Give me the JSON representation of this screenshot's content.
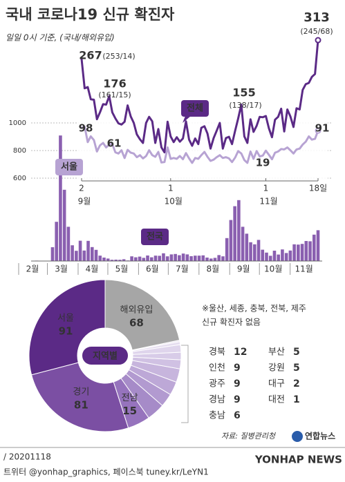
{
  "chart_data": [
    {
      "type": "line",
      "title": "국내 코로나19 신규 확진자",
      "subtitle": "일일 0시 기준, (국내/해외유입)",
      "x": [
        0,
        1,
        2,
        3,
        4,
        5,
        6,
        7,
        8,
        9,
        10,
        11,
        12,
        13,
        14,
        15,
        16,
        17,
        18,
        19,
        20,
        21,
        22,
        23,
        24,
        25,
        26,
        27,
        28,
        29,
        30,
        31,
        32,
        33,
        34,
        35,
        36,
        37,
        38,
        39,
        40,
        41,
        42,
        43,
        44,
        45,
        46,
        47,
        48,
        49,
        50,
        51,
        52,
        53,
        54,
        55,
        56,
        57,
        58,
        59,
        60,
        61,
        62,
        63,
        64,
        65,
        66,
        67,
        68,
        69,
        70,
        71,
        72,
        73,
        74,
        75,
        76,
        77
      ],
      "xlim": [
        0,
        77
      ],
      "xticks": [
        {
          "value": 0,
          "label": "2"
        },
        {
          "value": 29,
          "label": "1"
        },
        {
          "value": 60,
          "label": "1"
        },
        {
          "value": 77,
          "label": "18일"
        }
      ],
      "month_labels": [
        "9월",
        "10월",
        "11월"
      ],
      "ylim": [
        0,
        320
      ],
      "annotations": [
        "(253/14)",
        "(161/15)",
        "(138/17)",
        "(245/68)"
      ],
      "series": [
        {
          "name": "전체",
          "color": "#5b2a86",
          "values": [
            267,
            195,
            198,
            168,
            167,
            119,
            136,
            156,
            155,
            176,
            136,
            121,
            109,
            106,
            113,
            153,
            126,
            110,
            82,
            70,
            61,
            110,
            125,
            114,
            61,
            95,
            50,
            38,
            113,
            77,
            63,
            75,
            64,
            72,
            114,
            69,
            54,
            72,
            58,
            98,
            102,
            84,
            47,
            73,
            91,
            110,
            47,
            73,
            76,
            58,
            91,
            121,
            155,
            77,
            61,
            119,
            88,
            103,
            125,
            124,
            127,
            97,
            75,
            118,
            125,
            145,
            89,
            143,
            126,
            100,
            146,
            143,
            191,
            205,
            208,
            223,
            230,
            313
          ]
        },
        {
          "name": "서울",
          "color": "#b7a3d3",
          "values": [
            98,
            101,
            63,
            77,
            68,
            40,
            55,
            61,
            50,
            57,
            58,
            38,
            35,
            43,
            24,
            44,
            37,
            35,
            26,
            31,
            23,
            29,
            43,
            31,
            27,
            39,
            13,
            14,
            50,
            22,
            24,
            22,
            29,
            21,
            36,
            23,
            12,
            24,
            22,
            31,
            39,
            27,
            17,
            20,
            26,
            31,
            24,
            26,
            23,
            14,
            25,
            41,
            35,
            19,
            12,
            40,
            22,
            41,
            28,
            30,
            42,
            32,
            21,
            37,
            40,
            46,
            45,
            50,
            43,
            35,
            45,
            47,
            57,
            64,
            77,
            69,
            71,
            91
          ]
        }
      ]
    },
    {
      "type": "bar",
      "name": "전국",
      "color": "#8a5fb0",
      "x": [
        0,
        4,
        8,
        12,
        16,
        20,
        24,
        28,
        32,
        36,
        40,
        44,
        48,
        52,
        56,
        60,
        64,
        68,
        72,
        76,
        80,
        84,
        88,
        92,
        96,
        100,
        104,
        108,
        112,
        116,
        120,
        124,
        128,
        132,
        136,
        140,
        144,
        148,
        152,
        156,
        160,
        164,
        168,
        172,
        176,
        180,
        184,
        188,
        192,
        196,
        200,
        204,
        208,
        212,
        216,
        220,
        224,
        228,
        232,
        236,
        240,
        244,
        248,
        252,
        256,
        260,
        264,
        268,
        272,
        276,
        280,
        284,
        288
      ],
      "values": [
        1,
        3,
        0,
        0,
        1,
        100,
        284,
        909,
        516,
        248,
        114,
        74,
        147,
        76,
        146,
        101,
        81,
        39,
        25,
        18,
        9,
        10,
        9,
        13,
        4,
        34,
        27,
        32,
        23,
        40,
        27,
        39,
        38,
        56,
        34,
        48,
        51,
        42,
        54,
        48,
        35,
        39,
        39,
        41,
        25,
        18,
        23,
        43,
        34,
        166,
        297,
        397,
        441,
        248,
        198,
        136,
        121,
        153,
        82,
        61,
        38,
        75,
        47,
        84,
        58,
        76,
        121,
        119,
        124,
        145,
        143,
        191,
        223
      ],
      "xlim": [
        0,
        291
      ],
      "xticks": [
        {
          "value": 0,
          "label": "2월"
        },
        {
          "value": 29,
          "label": "3월"
        },
        {
          "value": 60,
          "label": "4월"
        },
        {
          "value": 90,
          "label": "5월"
        },
        {
          "value": 121,
          "label": "6월"
        },
        {
          "value": 151,
          "label": "7월"
        },
        {
          "value": 182,
          "label": "8월"
        },
        {
          "value": 213,
          "label": "9월"
        },
        {
          "value": 243,
          "label": "10월"
        },
        {
          "value": 274,
          "label": "11월"
        }
      ],
      "ylim": [
        0,
        1000
      ],
      "yticks": [
        600,
        800,
        1000
      ],
      "grid": true
    },
    {
      "type": "pie",
      "center_label": "지역별",
      "categories": [
        "서울",
        "경기",
        "전남",
        "경북",
        "인천",
        "광주",
        "경남",
        "충남",
        "부산",
        "강원",
        "대구",
        "대전",
        "해외유입"
      ],
      "values": [
        91,
        81,
        15,
        12,
        9,
        9,
        9,
        6,
        5,
        5,
        2,
        1,
        68
      ],
      "colors": [
        "#5b2a86",
        "#7b4fa3",
        "#9673bd",
        "#a68bc8",
        "#b29ad0",
        "#bda8d7",
        "#c7b5dd",
        "#d0c1e3",
        "#d8cce8",
        "#dfd5ec",
        "#e6def0",
        "#ece6f3",
        "#a6a6a6"
      ],
      "note": [
        "※울산, 세종, 충북, 전북, 제주",
        "신규 확진자 없음"
      ]
    }
  ],
  "footer": {
    "source": "자료: 질병관리청",
    "logo": "연합뉴스",
    "date": "/ 20201118",
    "social": "트위터 @yonhap_graphics, 페이스북 tuney.kr/LeYN1",
    "watermark": "YONHAP NEWS"
  }
}
